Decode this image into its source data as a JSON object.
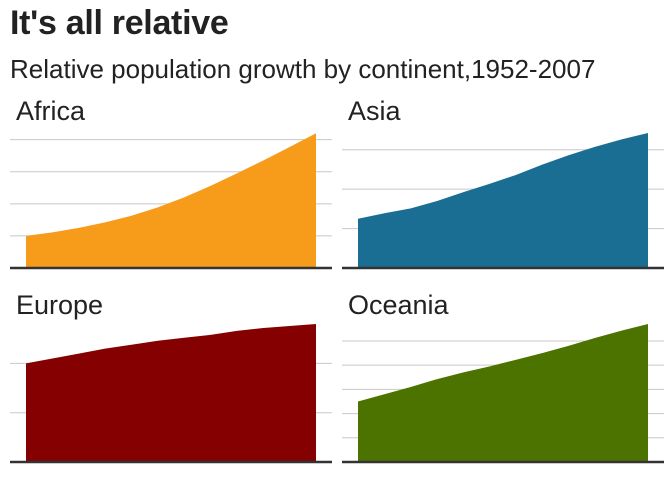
{
  "header": {
    "title": "It's all relative",
    "subtitle": "Relative population growth by continent,1952-2007"
  },
  "chart_data": [
    {
      "type": "area",
      "title": "Africa",
      "color": "#F79C1A",
      "x": [
        1952,
        1957,
        1962,
        1967,
        1972,
        1977,
        1982,
        1987,
        1992,
        1997,
        2002,
        2007
      ],
      "y": [
        1.0,
        1.11,
        1.25,
        1.42,
        1.63,
        1.89,
        2.2,
        2.56,
        2.95,
        3.35,
        3.77,
        4.2
      ],
      "ylim": [
        0,
        4.3
      ],
      "gridlines": [
        1,
        2,
        3,
        4
      ],
      "grid": true
    },
    {
      "type": "area",
      "title": "Asia",
      "color": "#1A6E93",
      "x": [
        1952,
        1957,
        1962,
        1967,
        1972,
        1977,
        1982,
        1987,
        1992,
        1997,
        2002,
        2007
      ],
      "y": [
        1.0,
        1.11,
        1.21,
        1.36,
        1.54,
        1.71,
        1.89,
        2.1,
        2.29,
        2.46,
        2.61,
        2.74
      ],
      "ylim": [
        0,
        2.8
      ],
      "gridlines": [
        0.8,
        1.6,
        2.4,
        3.2
      ],
      "grid": true
    },
    {
      "type": "area",
      "title": "Europe",
      "color": "#850000",
      "x": [
        1952,
        1957,
        1962,
        1967,
        1972,
        1977,
        1982,
        1987,
        1992,
        1997,
        2002,
        2007
      ],
      "y": [
        1.0,
        1.05,
        1.1,
        1.15,
        1.19,
        1.23,
        1.26,
        1.29,
        1.33,
        1.36,
        1.38,
        1.4
      ],
      "ylim": [
        0,
        1.4
      ],
      "gridlines": [
        0.5,
        1.0,
        1.5
      ],
      "grid": true
    },
    {
      "type": "area",
      "title": "Oceania",
      "color": "#4C7200",
      "x": [
        1952,
        1957,
        1962,
        1967,
        1972,
        1977,
        1982,
        1987,
        1992,
        1997,
        2002,
        2007
      ],
      "y": [
        1.0,
        1.12,
        1.24,
        1.37,
        1.48,
        1.58,
        1.69,
        1.8,
        1.92,
        2.05,
        2.17,
        2.28
      ],
      "ylim": [
        0,
        2.28
      ],
      "gridlines": [
        0.4,
        0.8,
        1.2,
        1.6,
        2.0,
        2.4
      ],
      "grid": true
    }
  ]
}
